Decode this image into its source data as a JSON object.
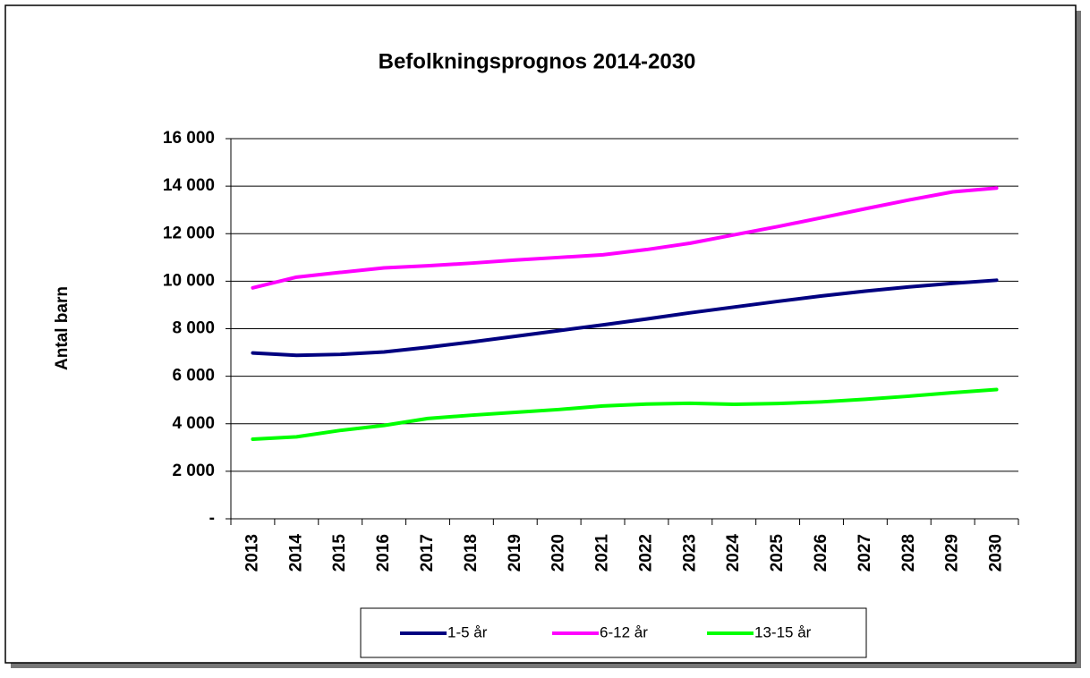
{
  "chart_data": {
    "type": "line",
    "title": "Befolkningsprognos 2014-2030",
    "y_label": "Antal barn",
    "categories": [
      "2013",
      "2014",
      "2015",
      "2016",
      "2017",
      "2018",
      "2019",
      "2020",
      "2021",
      "2022",
      "2023",
      "2024",
      "2025",
      "2026",
      "2027",
      "2028",
      "2029",
      "2030"
    ],
    "series": [
      {
        "name": "1-5 år",
        "color": "#000080",
        "values": [
          6980,
          6880,
          6920,
          7020,
          7220,
          7440,
          7680,
          7920,
          8160,
          8410,
          8670,
          8910,
          9150,
          9380,
          9580,
          9760,
          9910,
          10040
        ]
      },
      {
        "name": "6-12 år",
        "color": "#ff00ff",
        "values": [
          9720,
          10170,
          10370,
          10560,
          10650,
          10760,
          10890,
          11000,
          11110,
          11330,
          11600,
          11950,
          12300,
          12670,
          13050,
          13420,
          13760,
          13920
        ]
      },
      {
        "name": "13-15 år",
        "color": "#00ff00",
        "values": [
          3350,
          3450,
          3720,
          3930,
          4220,
          4360,
          4480,
          4600,
          4750,
          4830,
          4860,
          4820,
          4850,
          4920,
          5030,
          5160,
          5310,
          5440
        ]
      }
    ],
    "ylim": [
      0,
      16000
    ],
    "yticks": [
      {
        "value": 0,
        "label": "-"
      },
      {
        "value": 2000,
        "label": "2 000"
      },
      {
        "value": 4000,
        "label": "4 000"
      },
      {
        "value": 6000,
        "label": "6 000"
      },
      {
        "value": 8000,
        "label": "8 000"
      },
      {
        "value": 10000,
        "label": "10 000"
      },
      {
        "value": 12000,
        "label": "12 000"
      },
      {
        "value": 14000,
        "label": "14 000"
      },
      {
        "value": 16000,
        "label": "16 000"
      }
    ],
    "grid": true,
    "legend": "bottom"
  }
}
